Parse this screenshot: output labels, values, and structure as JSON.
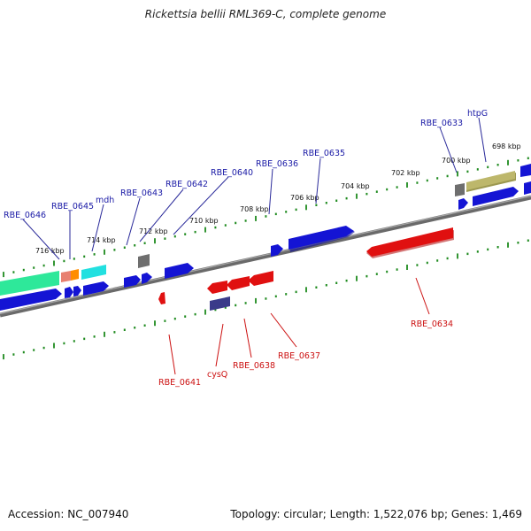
{
  "title": "Rickettsia bellii RML369-C, complete genome",
  "footer": {
    "accession": "Accession: NC_007940",
    "summary": "Topology: circular; Length: 1,522,076 bp; Genes: 1,469"
  },
  "colors": {
    "backbone": "#888888",
    "tick": "#1e8a1e",
    "top_label": "#1a1aa6",
    "bottom_label": "#cc1111"
  },
  "kbp_ticks": [
    "698 kbp",
    "700 kbp",
    "702 kbp",
    "704 kbp",
    "706 kbp",
    "708 kbp",
    "710 kbp",
    "712 kbp",
    "714 kbp",
    "716 kbp"
  ],
  "top_genes": [
    {
      "label": "RBE_0633",
      "color": "#808080"
    },
    {
      "label": "htpG",
      "color": "#bdb76b"
    },
    {
      "label": "RBE_0635",
      "color": "#1414d4"
    },
    {
      "label": "RBE_0636",
      "color": "#1414d4"
    },
    {
      "label": "RBE_0640",
      "color": "#1414d4"
    },
    {
      "label": "RBE_0642",
      "color": "#808080"
    },
    {
      "label": "RBE_0643",
      "color": "#1414d4"
    },
    {
      "label": "mdh",
      "color": "#22e0e0"
    },
    {
      "label": "RBE_0645",
      "color": "#ff8c00"
    },
    {
      "label": "RBE_0646",
      "color": "#2ee89a"
    }
  ],
  "bottom_genes": [
    {
      "label": "RBE_0634",
      "color": "#e01010"
    },
    {
      "label": "RBE_0637",
      "color": "#e01010"
    },
    {
      "label": "RBE_0638",
      "color": "#e01010"
    },
    {
      "label": "cysQ",
      "color": "#3b3b8a"
    },
    {
      "label": "RBE_0641",
      "color": "#e01010"
    }
  ]
}
